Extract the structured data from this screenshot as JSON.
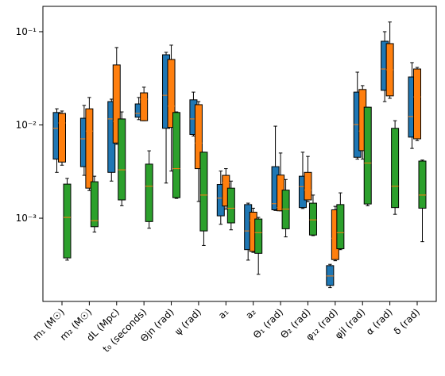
{
  "chart_data": {
    "type": "boxplot",
    "categories": [
      "m₁ (M☉)",
      "m₂ (M☉)",
      "dL (Mpc)",
      "t₀ (seconds)",
      "Θjn (rad)",
      "ψ (rad)",
      "a₁",
      "a₂",
      "Θ₁ (rad)",
      "Θ₂ (rad)",
      "φ₁₂ (rad)",
      "φjl (rad)",
      "α (rad)",
      "δ (rad)"
    ],
    "log_y": true,
    "ylim": [
      0.000128,
      0.187
    ],
    "yticks": [
      {
        "value": 0.001,
        "label": "10⁻³"
      },
      {
        "value": 0.01,
        "label": "10⁻²"
      },
      {
        "value": 0.1,
        "label": "10⁻¹"
      }
    ],
    "median_color": "#ff7f0e",
    "series": [
      {
        "color": "#1f77b4",
        "whislo": [
          0.0031,
          0.00288,
          0.0025,
          0.0114,
          0.00238,
          0.0076,
          0.00086,
          0.000355,
          0.00121,
          0.00127,
          0.00018,
          0.0043,
          0.0178,
          0.0056
        ],
        "q1": [
          0.0043,
          0.00357,
          0.0031,
          0.0121,
          0.0092,
          0.0079,
          0.00106,
          0.00046,
          0.00123,
          0.0013,
          0.00019,
          0.0045,
          0.0235,
          0.0074
        ],
        "median": [
          0.0092,
          0.0071,
          0.0116,
          0.0133,
          0.0208,
          0.0116,
          0.00164,
          0.00073,
          0.00143,
          0.00218,
          0.00024,
          0.0101,
          0.0398,
          0.0123
        ],
        "q3": [
          0.0136,
          0.0118,
          0.0178,
          0.0168,
          0.0566,
          0.0186,
          0.0023,
          0.0014,
          0.00357,
          0.00282,
          0.00031,
          0.0225,
          0.079,
          0.0327
        ],
        "whishi": [
          0.0149,
          0.0162,
          0.0189,
          0.0197,
          0.0601,
          0.0225,
          0.0032,
          0.00145,
          0.0097,
          0.0051,
          0.00032,
          0.0368,
          0.1,
          0.0466
        ]
      },
      {
        "color": "#ff7f0e",
        "whislo": [
          0.0037,
          0.00198,
          0.0062,
          0.0111,
          0.0032,
          0.00151,
          0.00125,
          0.00043,
          0.0012,
          0.0015,
          0.00035,
          0.0043,
          0.0193,
          0.0068
        ],
        "q1": [
          0.004,
          0.0021,
          0.0064,
          0.0111,
          0.0094,
          0.0034,
          0.00135,
          0.00044,
          0.0012,
          0.00157,
          0.00036,
          0.0053,
          0.0205,
          0.0071
        ],
        "median": [
          0.0105,
          0.0086,
          0.0109,
          0.0189,
          0.0159,
          0.0064,
          0.0024,
          0.00094,
          0.0013,
          0.002,
          0.00061,
          0.0086,
          0.039,
          0.02
        ],
        "q3": [
          0.0133,
          0.0149,
          0.044,
          0.0221,
          0.0504,
          0.0165,
          0.00288,
          0.00116,
          0.0029,
          0.0031,
          0.00123,
          0.024,
          0.0745,
          0.0398
        ],
        "whishi": [
          0.0141,
          0.0197,
          0.0676,
          0.0254,
          0.0717,
          0.0178,
          0.0034,
          0.00128,
          0.005,
          0.0046,
          0.00134,
          0.0264,
          0.127,
          0.0414
        ]
      },
      {
        "color": "#2ca02c",
        "whislo": [
          0.000355,
          0.00071,
          0.00136,
          0.00078,
          0.00163,
          0.00051,
          0.00075,
          0.00025,
          0.00063,
          0.00065,
          0.00046,
          0.00136,
          0.0011,
          0.00056
        ],
        "q1": [
          0.000375,
          0.00081,
          0.00157,
          0.00092,
          0.00166,
          0.00073,
          0.00089,
          0.00042,
          0.00077,
          0.00066,
          0.00047,
          0.00142,
          0.0013,
          0.00128
        ],
        "median": [
          0.00102,
          0.00094,
          0.0033,
          0.0022,
          0.0034,
          0.00177,
          0.00128,
          0.0007,
          0.00125,
          0.00096,
          0.0007,
          0.0039,
          0.0022,
          0.00177
        ],
        "q3": [
          0.00232,
          0.00246,
          0.0116,
          0.0038,
          0.0136,
          0.0051,
          0.0021,
          0.00098,
          0.002,
          0.00145,
          0.0014,
          0.0155,
          0.0092,
          0.0041
        ],
        "whishi": [
          0.00267,
          0.00282,
          0.0138,
          0.00528,
          0.0138,
          0.0051,
          0.0025,
          0.00102,
          0.0026,
          0.00177,
          0.00187,
          0.0155,
          0.0111,
          0.0042
        ]
      }
    ]
  }
}
